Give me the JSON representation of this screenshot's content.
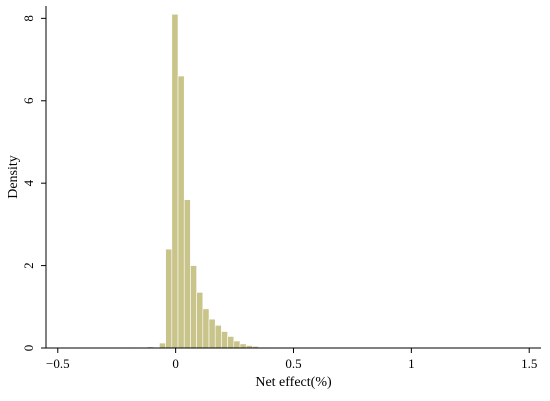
{
  "chart_data": {
    "type": "bar",
    "xlabel": "Net effect(%)",
    "ylabel": "Density",
    "xlim": [
      -0.55,
      1.55
    ],
    "ylim": [
      0,
      8.3
    ],
    "x_ticks": [
      "−0.5",
      "0",
      "0.5",
      "1",
      "1.5"
    ],
    "x_tick_values": [
      -0.5,
      0,
      0.5,
      1,
      1.5
    ],
    "y_ticks": [
      "0",
      "2",
      "4",
      "6",
      "8"
    ],
    "y_tick_values": [
      0,
      2,
      4,
      6,
      8
    ],
    "grid": false,
    "bar_color": "#c9c48a",
    "bin_width": 0.0263,
    "bins": [
      {
        "x0": -0.45,
        "value": 0.01
      },
      {
        "x0": -0.3,
        "value": 0.01
      },
      {
        "x0": -0.2,
        "value": 0.02
      },
      {
        "x0": -0.12,
        "value": 0.03
      },
      {
        "x0": -0.0688,
        "value": 0.12
      },
      {
        "x0": -0.0425,
        "value": 2.4
      },
      {
        "x0": -0.0162,
        "value": 8.1
      },
      {
        "x0": 0.0101,
        "value": 6.6
      },
      {
        "x0": 0.0364,
        "value": 3.6
      },
      {
        "x0": 0.0627,
        "value": 2.0
      },
      {
        "x0": 0.089,
        "value": 1.35
      },
      {
        "x0": 0.1153,
        "value": 0.95
      },
      {
        "x0": 0.1416,
        "value": 0.7
      },
      {
        "x0": 0.1679,
        "value": 0.55
      },
      {
        "x0": 0.1942,
        "value": 0.4
      },
      {
        "x0": 0.2205,
        "value": 0.28
      },
      {
        "x0": 0.2468,
        "value": 0.17
      },
      {
        "x0": 0.2731,
        "value": 0.1
      },
      {
        "x0": 0.2994,
        "value": 0.06
      },
      {
        "x0": 0.3257,
        "value": 0.04
      },
      {
        "x0": 0.352,
        "value": 0.02
      },
      {
        "x0": 0.3783,
        "value": 0.015
      },
      {
        "x0": 0.4309,
        "value": 0.01
      },
      {
        "x0": 0.5361,
        "value": 0.01
      },
      {
        "x0": 0.6413,
        "value": 0.01
      },
      {
        "x0": 0.7465,
        "value": 0.01
      },
      {
        "x0": 0.8517,
        "value": 0.008
      },
      {
        "x0": 0.9569,
        "value": 0.008
      },
      {
        "x0": 1.1673,
        "value": 0.006
      },
      {
        "x0": 1.3777,
        "value": 0.005
      }
    ]
  }
}
